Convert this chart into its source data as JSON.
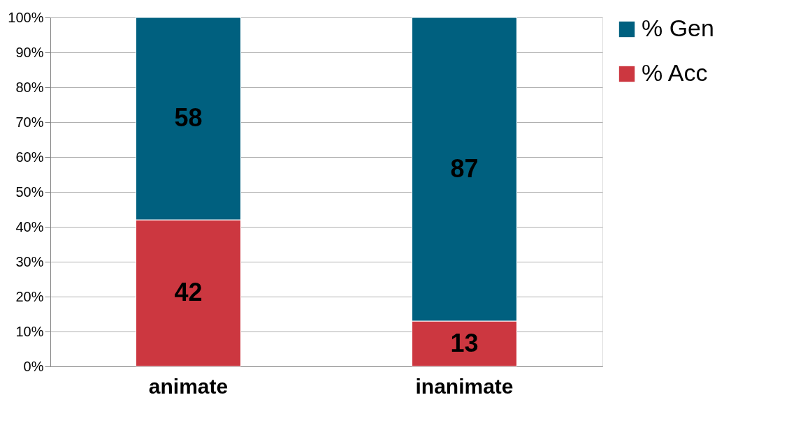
{
  "chart_data": {
    "type": "bar",
    "stacked": true,
    "categories": [
      "animate",
      "inanimate"
    ],
    "series": [
      {
        "name": "% Acc",
        "color": "#cc3740",
        "values": [
          42,
          13
        ]
      },
      {
        "name": "% Gen",
        "color": "#00607f",
        "values": [
          58,
          87
        ]
      }
    ],
    "ylim": [
      0,
      100
    ],
    "yticks": [
      {
        "value": 0,
        "label": "0%"
      },
      {
        "value": 10,
        "label": "10%"
      },
      {
        "value": 20,
        "label": "20%"
      },
      {
        "value": 30,
        "label": "30%"
      },
      {
        "value": 40,
        "label": "40%"
      },
      {
        "value": 50,
        "label": "50%"
      },
      {
        "value": 60,
        "label": "60%"
      },
      {
        "value": 70,
        "label": "70%"
      },
      {
        "value": 80,
        "label": "80%"
      },
      {
        "value": 90,
        "label": "90%"
      },
      {
        "value": 100,
        "label": "100%"
      }
    ],
    "data_labels": true,
    "grid": "y",
    "legend": "right"
  }
}
